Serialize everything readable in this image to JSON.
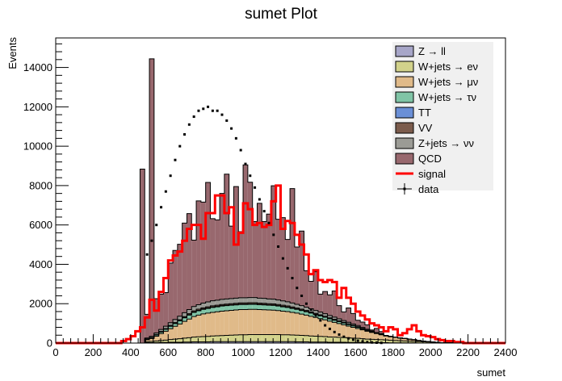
{
  "chart_data": {
    "type": "histogram",
    "title": "sumet Plot",
    "xlabel": "sumet",
    "ylabel": "Events",
    "xlim": [
      0,
      2400
    ],
    "ylim": [
      0,
      15500
    ],
    "xticks": [
      0,
      200,
      400,
      600,
      800,
      1000,
      1200,
      1400,
      1600,
      1800,
      2000,
      2200,
      2400
    ],
    "yticks": [
      0,
      2000,
      4000,
      6000,
      8000,
      10000,
      12000,
      14000
    ],
    "bin_width": 25,
    "bin_start": 0,
    "stacked": true,
    "legend": {
      "position": "top-right"
    },
    "background": [
      {
        "name": "Z → ll",
        "color": "#a7a6c8",
        "values": [
          0,
          0,
          0,
          0,
          0,
          0,
          0,
          0,
          0,
          0,
          0,
          0,
          0,
          0,
          0,
          0,
          0,
          0,
          0,
          20,
          20,
          20,
          30,
          30,
          40,
          40,
          40,
          50,
          50,
          60,
          60,
          60,
          60,
          70,
          70,
          70,
          70,
          70,
          70,
          70,
          70,
          70,
          70,
          70,
          70,
          70,
          70,
          70,
          70,
          70,
          70,
          60,
          60,
          60,
          50,
          50,
          50,
          50,
          40,
          40,
          40,
          40,
          30,
          30,
          30,
          30,
          20,
          20,
          20,
          20,
          20,
          10,
          10,
          10,
          10,
          10,
          10,
          0,
          0,
          0,
          0,
          0,
          0,
          0,
          0,
          0,
          0,
          0,
          0,
          0,
          0,
          0,
          0,
          0,
          0,
          0
        ]
      },
      {
        "name": "W+jets → eν",
        "color": "#d2d28b",
        "values": [
          0,
          0,
          0,
          0,
          0,
          0,
          0,
          0,
          0,
          0,
          0,
          0,
          0,
          0,
          0,
          0,
          0,
          0,
          0,
          50,
          60,
          80,
          100,
          120,
          140,
          160,
          180,
          200,
          220,
          240,
          260,
          270,
          280,
          290,
          300,
          310,
          320,
          330,
          340,
          350,
          350,
          360,
          360,
          360,
          360,
          360,
          360,
          360,
          350,
          350,
          340,
          340,
          330,
          320,
          310,
          300,
          290,
          280,
          270,
          260,
          250,
          240,
          230,
          220,
          210,
          190,
          180,
          170,
          160,
          150,
          140,
          130,
          120,
          110,
          100,
          90,
          80,
          70,
          60,
          50,
          40,
          30,
          20,
          10,
          10,
          0,
          0,
          0,
          0,
          0,
          0,
          0,
          0,
          0,
          0,
          0
        ]
      },
      {
        "name": "W+jets → μν",
        "color": "#e0ba89",
        "values": [
          0,
          0,
          0,
          0,
          0,
          0,
          0,
          0,
          0,
          0,
          0,
          0,
          0,
          0,
          0,
          0,
          0,
          0,
          0,
          100,
          150,
          250,
          350,
          450,
          550,
          650,
          750,
          850,
          950,
          1050,
          1100,
          1150,
          1180,
          1200,
          1220,
          1240,
          1250,
          1260,
          1270,
          1280,
          1280,
          1280,
          1280,
          1270,
          1260,
          1250,
          1240,
          1220,
          1200,
          1180,
          1150,
          1120,
          1080,
          1040,
          1000,
          950,
          900,
          850,
          800,
          750,
          700,
          650,
          600,
          550,
          500,
          450,
          400,
          350,
          300,
          250,
          200,
          180,
          160,
          140,
          120,
          100,
          80,
          60,
          40,
          30,
          20,
          10,
          0,
          0,
          0,
          0,
          0,
          0,
          0,
          0,
          0,
          0,
          0,
          0,
          0,
          0
        ]
      },
      {
        "name": "W+jets → τν",
        "color": "#80c4a6",
        "values": [
          0,
          0,
          0,
          0,
          0,
          0,
          0,
          0,
          0,
          0,
          0,
          0,
          0,
          0,
          0,
          0,
          0,
          0,
          0,
          30,
          40,
          60,
          80,
          100,
          120,
          140,
          160,
          180,
          200,
          210,
          220,
          230,
          240,
          250,
          250,
          260,
          260,
          260,
          260,
          260,
          260,
          260,
          260,
          250,
          250,
          240,
          240,
          230,
          220,
          210,
          200,
          190,
          180,
          170,
          160,
          150,
          140,
          130,
          120,
          110,
          100,
          90,
          80,
          70,
          60,
          50,
          40,
          30,
          20,
          20,
          10,
          10,
          0,
          0,
          0,
          0,
          0,
          0,
          0,
          0,
          0,
          0,
          0,
          0,
          0,
          0,
          0,
          0,
          0,
          0,
          0,
          0,
          0,
          0,
          0,
          0
        ]
      },
      {
        "name": "TT",
        "color": "#6a8fd6",
        "values": [
          0,
          0,
          0,
          0,
          0,
          0,
          0,
          0,
          0,
          0,
          0,
          0,
          0,
          0,
          0,
          0,
          0,
          0,
          0,
          5,
          5,
          10,
          10,
          10,
          15,
          15,
          15,
          20,
          20,
          20,
          20,
          20,
          20,
          20,
          20,
          20,
          20,
          20,
          20,
          20,
          20,
          20,
          20,
          20,
          20,
          20,
          20,
          20,
          20,
          20,
          20,
          20,
          20,
          20,
          20,
          15,
          15,
          15,
          15,
          15,
          10,
          10,
          10,
          10,
          10,
          10,
          5,
          5,
          5,
          5,
          5,
          0,
          0,
          0,
          0,
          0,
          0,
          0,
          0,
          0,
          0,
          0,
          0,
          0,
          0,
          0,
          0,
          0,
          0,
          0,
          0,
          0,
          0,
          0,
          0,
          0
        ]
      },
      {
        "name": "VV",
        "color": "#7b5b4c",
        "values": [
          0,
          0,
          0,
          0,
          0,
          0,
          0,
          0,
          0,
          0,
          0,
          0,
          0,
          0,
          0,
          0,
          0,
          0,
          0,
          10,
          10,
          15,
          20,
          25,
          30,
          35,
          40,
          45,
          50,
          55,
          60,
          60,
          60,
          60,
          60,
          60,
          60,
          60,
          60,
          60,
          60,
          60,
          60,
          60,
          60,
          60,
          60,
          60,
          60,
          55,
          55,
          50,
          50,
          45,
          45,
          40,
          40,
          35,
          35,
          30,
          30,
          25,
          25,
          20,
          20,
          15,
          15,
          10,
          10,
          10,
          5,
          5,
          5,
          0,
          0,
          0,
          0,
          0,
          0,
          0,
          0,
          0,
          0,
          0,
          0,
          0,
          0,
          0,
          0,
          0,
          0,
          0,
          0,
          0,
          0,
          0
        ]
      },
      {
        "name": "Z+jets → νν",
        "color": "#9b9b95",
        "values": [
          0,
          0,
          0,
          0,
          0,
          0,
          0,
          0,
          0,
          0,
          0,
          0,
          0,
          0,
          0,
          0,
          0,
          0,
          0,
          40,
          60,
          80,
          100,
          120,
          140,
          160,
          180,
          200,
          210,
          220,
          230,
          240,
          250,
          260,
          260,
          260,
          260,
          260,
          260,
          260,
          260,
          260,
          260,
          250,
          250,
          240,
          240,
          230,
          220,
          210,
          200,
          190,
          180,
          170,
          160,
          150,
          140,
          130,
          120,
          110,
          100,
          90,
          80,
          70,
          60,
          50,
          40,
          30,
          20,
          20,
          10,
          10,
          0,
          0,
          0,
          0,
          0,
          0,
          0,
          0,
          0,
          0,
          0,
          0,
          0,
          0,
          0,
          0,
          0,
          0,
          0,
          0,
          0,
          0,
          0,
          0
        ]
      },
      {
        "name": "QCD",
        "color": "#98686e",
        "values": [
          0,
          0,
          0,
          0,
          0,
          0,
          0,
          0,
          0,
          0,
          0,
          0,
          0,
          0,
          0,
          0,
          0,
          0,
          8835,
          1205,
          14095,
          1740,
          1795,
          1710,
          3030,
          3505,
          3655,
          4550,
          4875,
          3375,
          5270,
          5130,
          6070,
          4170,
          4080,
          5380,
          6340,
          3680,
          5670,
          3360,
          6750,
          5860,
          3860,
          4820,
          3900,
          4310,
          5760,
          4100,
          4230,
          3170,
          5810,
          2910,
          3790,
          1850,
          1390,
          1970,
          910,
          1130,
          1050,
          1330,
          670,
          440,
          730,
          530,
          270,
          270,
          230,
          50,
          210,
          110,
          0,
          0,
          0,
          0,
          0,
          0,
          0,
          0,
          0,
          0,
          0,
          0,
          0,
          0,
          0,
          0,
          0,
          0,
          0,
          0,
          0,
          0,
          0,
          0,
          0,
          0
        ]
      }
    ],
    "signal": {
      "name": "signal",
      "color": "#ff0000",
      "values": [
        0,
        0,
        0,
        0,
        0,
        0,
        0,
        0,
        0,
        0,
        0,
        0,
        0,
        0,
        100,
        200,
        350,
        600,
        800,
        1300,
        2200,
        1650,
        2600,
        3300,
        4200,
        4450,
        4650,
        5200,
        5800,
        6000,
        6000,
        5300,
        6600,
        6600,
        7500,
        7500,
        6600,
        6900,
        5000,
        5600,
        7100,
        6800,
        6000,
        6100,
        5900,
        6000,
        7200,
        8000,
        5800,
        6200,
        6100,
        5500,
        5000,
        4500,
        3500,
        3700,
        3200,
        3100,
        3200,
        3100,
        2300,
        2800,
        2300,
        2000,
        1600,
        1400,
        1200,
        1000,
        900,
        800,
        600,
        800,
        700,
        400,
        500,
        700,
        900,
        600,
        400,
        350,
        300,
        200,
        150,
        100,
        100,
        50,
        50,
        0,
        0,
        0,
        0,
        0,
        0,
        0,
        0,
        0
      ]
    },
    "data": {
      "name": "data",
      "color": "#000000",
      "values": [
        0,
        0,
        0,
        0,
        0,
        0,
        0,
        0,
        0,
        0,
        0,
        0,
        0,
        0,
        0,
        0,
        0,
        0,
        0,
        4500,
        5200,
        6000,
        6900,
        7700,
        8500,
        9300,
        10000,
        10600,
        11100,
        11500,
        11800,
        11900,
        12000,
        11800,
        11800,
        11600,
        11300,
        10900,
        10400,
        9800,
        9100,
        8500,
        7900,
        7300,
        6700,
        6100,
        5500,
        4900,
        4300,
        3800,
        3300,
        2800,
        2400,
        2000,
        1700,
        1400,
        1150,
        900,
        720,
        560,
        430,
        320,
        240,
        170,
        120,
        80,
        50,
        30,
        20,
        10,
        0,
        0,
        0,
        0,
        0,
        0,
        0,
        0,
        0,
        0,
        0,
        0,
        0,
        0,
        0,
        0,
        0,
        0,
        0,
        0,
        0,
        0,
        0,
        0,
        0,
        0
      ]
    }
  }
}
